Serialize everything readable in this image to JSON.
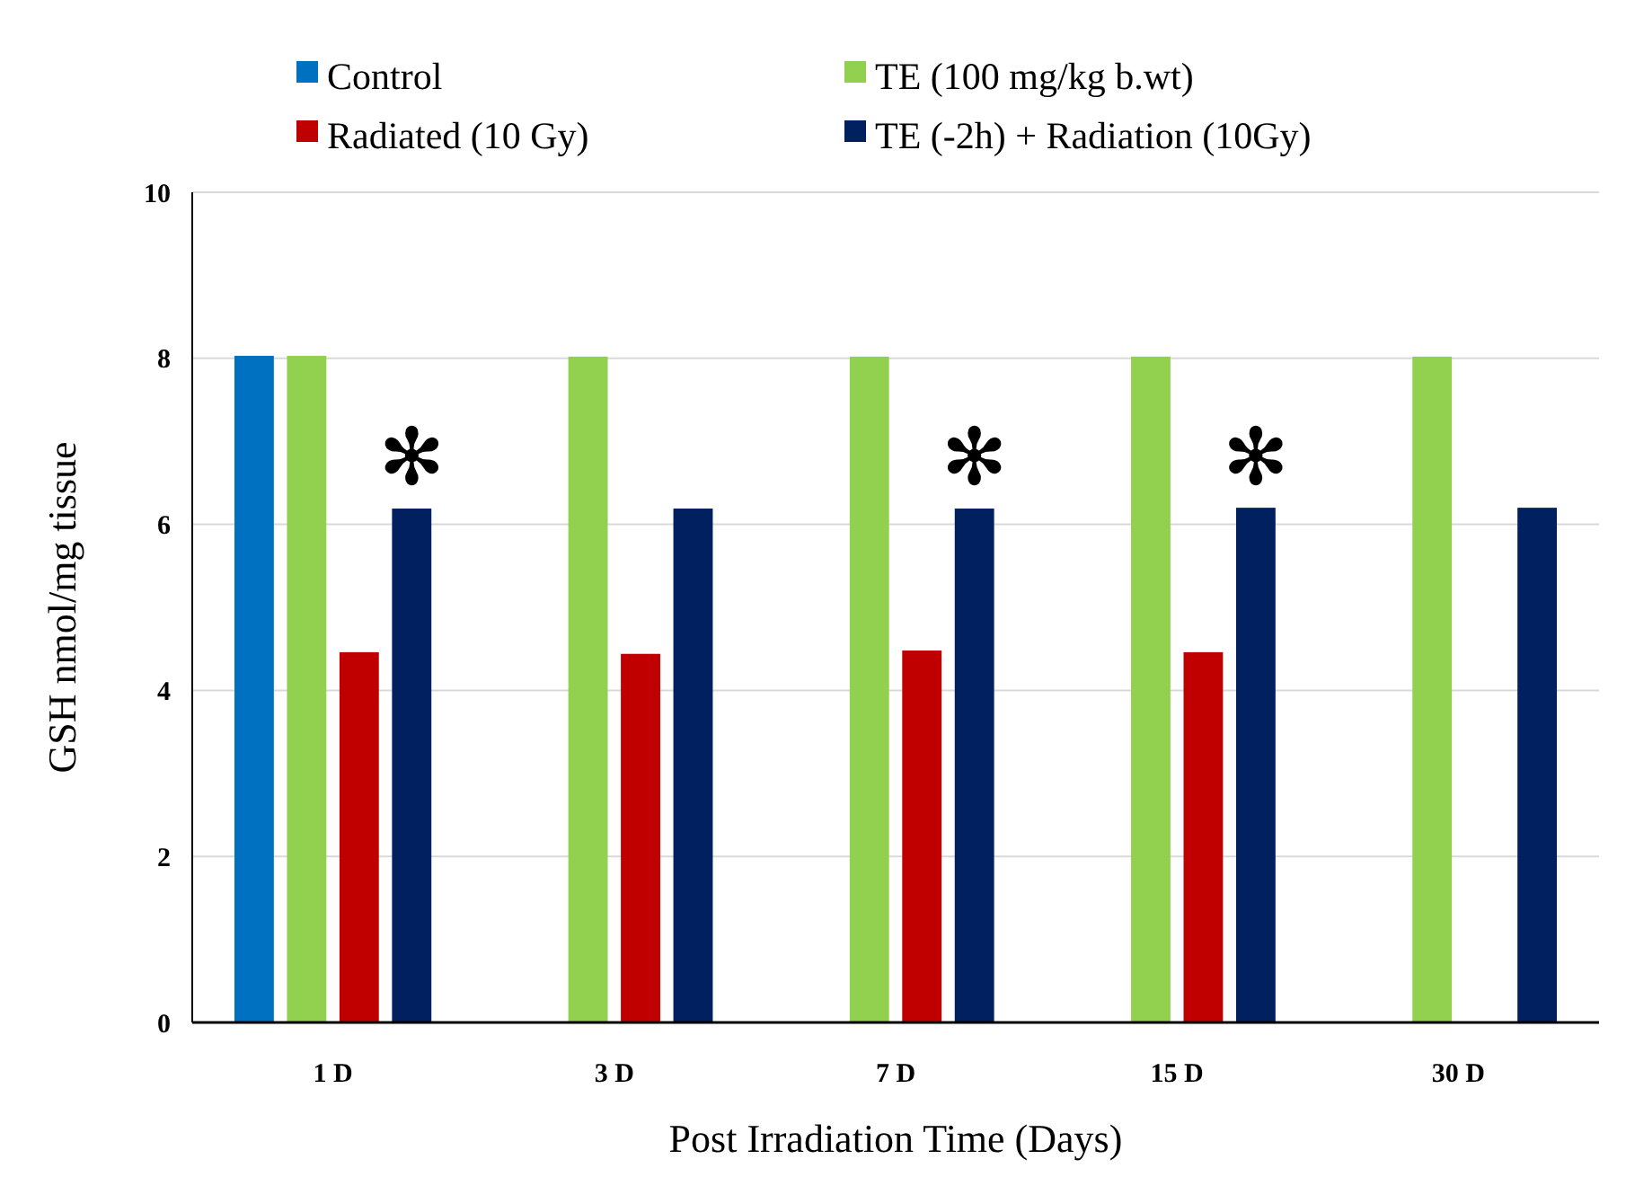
{
  "chart_data": {
    "type": "bar",
    "xlabel": "Post Irradiation Time (Days)",
    "ylabel": "GSH nmol/mg tissue",
    "categories": [
      "1 D",
      "3 D",
      "7 D",
      "15 D",
      "30 D"
    ],
    "series": [
      {
        "name": "Control",
        "color": "#0070c0",
        "values": [
          8.03,
          null,
          null,
          null,
          null
        ]
      },
      {
        "name": "TE (100 mg/kg b.wt)",
        "color": "#92d050",
        "values": [
          8.03,
          8.02,
          8.02,
          8.02,
          8.02
        ]
      },
      {
        "name": "Radiated (10 Gy)",
        "color": "#c00000",
        "values": [
          4.46,
          4.44,
          4.48,
          4.46,
          null
        ]
      },
      {
        "name": "TE (-2h) + Radiation (10Gy)",
        "color": "#002060",
        "values": [
          6.19,
          6.19,
          6.19,
          6.2,
          6.2
        ]
      }
    ],
    "ylim": [
      0,
      10
    ],
    "yticks": [
      0,
      2,
      4,
      6,
      8,
      10
    ],
    "grid": "y",
    "legend": "top",
    "annotations": [
      {
        "text": "✻",
        "x": "1 D",
        "y": 6.8
      },
      {
        "text": "✻",
        "x": "7 D",
        "y": 6.8
      },
      {
        "text": "✻",
        "x": "15 D",
        "y": 6.8
      }
    ]
  }
}
